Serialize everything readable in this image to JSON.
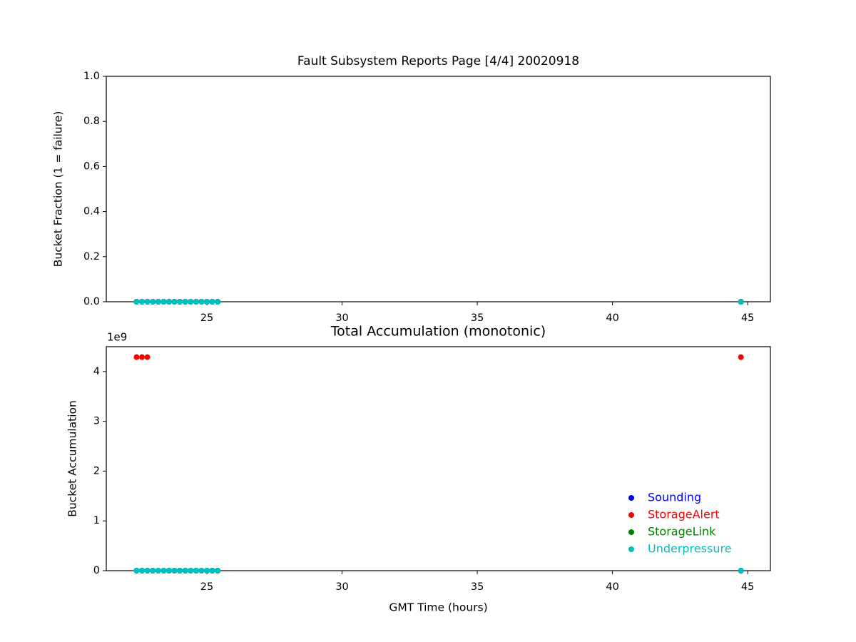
{
  "chart_data": [
    {
      "type": "scatter",
      "title": "Fault Subsystem Reports Page [4/4] 20020918",
      "ylabel": "Bucket Fraction (1 = failure)",
      "x": [
        22.4,
        22.6,
        22.8,
        23.0,
        23.2,
        23.4,
        23.6,
        23.8,
        24.0,
        24.2,
        24.4,
        24.6,
        24.8,
        25.0,
        25.2,
        25.4,
        44.75
      ],
      "series": [
        {
          "name": "Sounding",
          "color": "#0000ff",
          "values": [
            0,
            0,
            0,
            0,
            0,
            0,
            0,
            0,
            0,
            0,
            0,
            0,
            0,
            0,
            0,
            0,
            0
          ]
        },
        {
          "name": "StorageAlert",
          "color": "#ff0000",
          "values": [
            0,
            0,
            0,
            0,
            0,
            0,
            0,
            0,
            0,
            0,
            0,
            0,
            0,
            0,
            0,
            0,
            0
          ]
        },
        {
          "name": "StorageLink",
          "color": "#008000",
          "values": [
            0,
            0,
            0,
            0,
            0,
            0,
            0,
            0,
            0,
            0,
            0,
            0,
            0,
            0,
            0,
            0,
            0
          ]
        },
        {
          "name": "Underpressure",
          "color": "#00bfbf",
          "values": [
            0,
            0,
            0,
            0,
            0,
            0,
            0,
            0,
            0,
            0,
            0,
            0,
            0,
            0,
            0,
            0,
            0
          ]
        }
      ],
      "xlim": [
        21.28,
        45.84
      ],
      "xticks": [
        25,
        30,
        35,
        40,
        45
      ],
      "ylim": [
        0,
        1
      ],
      "yticks": [
        {
          "value": 0,
          "label": "0.0"
        },
        {
          "value": 0.2,
          "label": "0.2"
        },
        {
          "value": 0.4,
          "label": "0.4"
        },
        {
          "value": 0.6,
          "label": "0.6"
        },
        {
          "value": 0.8,
          "label": "0.8"
        },
        {
          "value": 1,
          "label": "1.0"
        }
      ]
    },
    {
      "type": "scatter",
      "title": "Total Accumulation (monotonic)",
      "xlabel": "GMT Time (hours)",
      "ylabel": "Bucket Accumulation",
      "y_offset_label": "1e9",
      "x": [
        22.4,
        22.6,
        22.8,
        23.0,
        23.2,
        23.4,
        23.6,
        23.8,
        24.0,
        24.2,
        24.4,
        24.6,
        24.8,
        25.0,
        25.2,
        25.4,
        44.75
      ],
      "series": [
        {
          "name": "Sounding",
          "color": "#0000ff",
          "values": [
            0,
            0,
            0,
            0,
            0,
            0,
            0,
            0,
            0,
            0,
            0,
            0,
            0,
            0,
            0,
            0,
            0
          ]
        },
        {
          "name": "StorageAlert",
          "color": "#ff0000",
          "values": [
            4.29,
            4.29,
            4.29,
            null,
            null,
            null,
            null,
            null,
            null,
            null,
            null,
            null,
            null,
            null,
            null,
            null,
            4.29
          ]
        },
        {
          "name": "StorageLink",
          "color": "#008000",
          "values": [
            0,
            0,
            0,
            0,
            0,
            0,
            0,
            0,
            0,
            0,
            0,
            0,
            0,
            0,
            0,
            0,
            0
          ]
        },
        {
          "name": "Underpressure",
          "color": "#00bfbf",
          "values": [
            0,
            0,
            0,
            0,
            0,
            0,
            0,
            0,
            0,
            0,
            0,
            0,
            0,
            0,
            0,
            0,
            0
          ]
        }
      ],
      "xlim": [
        21.28,
        45.84
      ],
      "xticks": [
        25,
        30,
        35,
        40,
        45
      ],
      "ylim": [
        0,
        4.5
      ],
      "yticks": [
        0,
        1,
        2,
        3,
        4
      ],
      "legend": "lower right"
    }
  ]
}
